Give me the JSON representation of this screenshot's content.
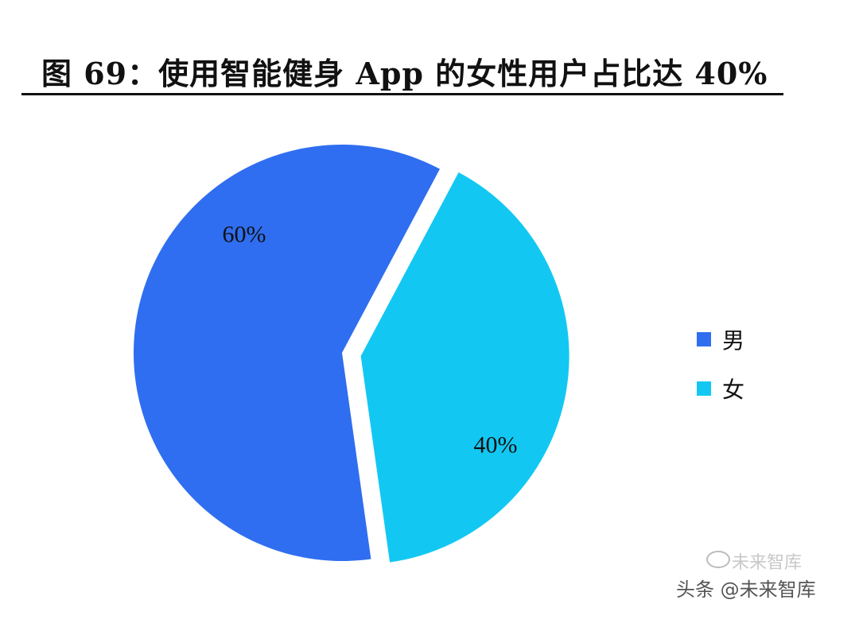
{
  "title": "图 69：使用智能健身 App 的女性用户占比达 40%",
  "chart_data": {
    "type": "pie",
    "slices": [
      {
        "name": "男",
        "value": 60,
        "label": "60%",
        "color": "#2f6ef0"
      },
      {
        "name": "女",
        "value": 40,
        "label": "40%",
        "color": "#12c8f2"
      }
    ],
    "legend_placement": "right",
    "exploded": "女"
  },
  "watermark": {
    "top_text": "未来智库",
    "bottom_text": "头条 @未来智库",
    "icon": "wechat-icon"
  }
}
